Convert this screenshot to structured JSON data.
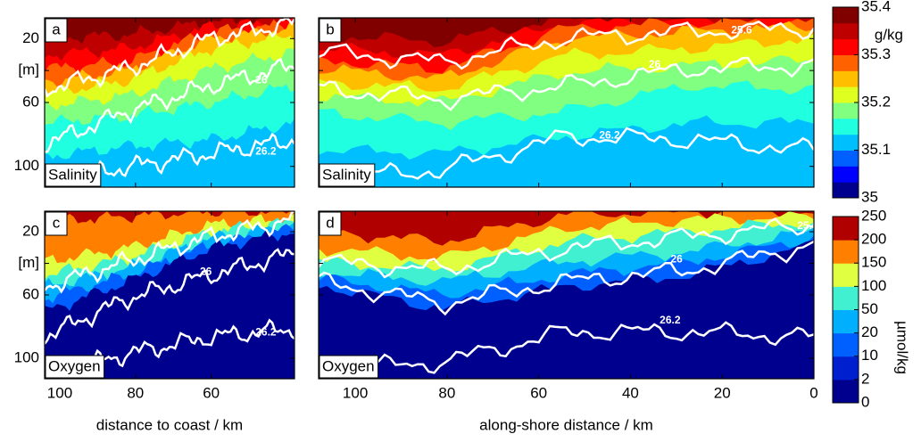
{
  "chart_data": [
    {
      "type": "contour",
      "panel": "a",
      "label": "Salinity",
      "xlim": [
        104,
        38
      ],
      "ylim": [
        7,
        113
      ],
      "yticks": [
        20,
        {
          "value": 40,
          "label": "[m]"
        },
        60,
        100
      ],
      "contour_labels": [
        26,
        26.2
      ],
      "colorbar": {
        "lim": [
          35,
          35.4
        ],
        "ticks": [
          35,
          35.1,
          35.2,
          35.3,
          35.4
        ],
        "label": "g/kg",
        "spacing": "linear",
        "colors": [
          "#00008f",
          "#0000ff",
          "#0060ff",
          "#00bfff",
          "#20ffdf",
          "#80ff80",
          "#dfff20",
          "#ffbf00",
          "#ff6000",
          "#ff0000",
          "#bf0000",
          "#800000"
        ]
      }
    },
    {
      "type": "contour",
      "panel": "b",
      "label": "Salinity",
      "xlim": [
        108,
        0
      ],
      "ylim": [
        7,
        113
      ],
      "contour_labels": [
        25.6,
        26,
        26.2
      ]
    },
    {
      "type": "contour",
      "panel": "c",
      "label": "Oxygen",
      "xlim": [
        104,
        38
      ],
      "ylim": [
        7,
        113
      ],
      "xticks": [
        100,
        80,
        60
      ],
      "xlabel": "distance to coast / km",
      "yticks": [
        20,
        {
          "value": 40,
          "label": "[m]"
        },
        60,
        100
      ],
      "contour_labels": [
        26,
        26.2
      ],
      "colorbar": {
        "ticks": [
          0,
          2,
          10,
          20,
          50,
          100,
          150,
          200,
          250
        ],
        "label": "µmol/kg",
        "spacing": "equal",
        "colors": [
          "#00008f",
          "#0020d0",
          "#0060ff",
          "#00b0ff",
          "#40f0d0",
          "#e0ff40",
          "#ff8000",
          "#b00000"
        ]
      }
    },
    {
      "type": "contour",
      "panel": "d",
      "label": "Oxygen",
      "xlim": [
        108,
        0
      ],
      "ylim": [
        7,
        113
      ],
      "xticks": [
        100,
        80,
        60,
        40,
        20,
        0
      ],
      "xlabel": "along-shore distance / km",
      "contour_labels": [
        25.6,
        26,
        26.2
      ]
    }
  ]
}
